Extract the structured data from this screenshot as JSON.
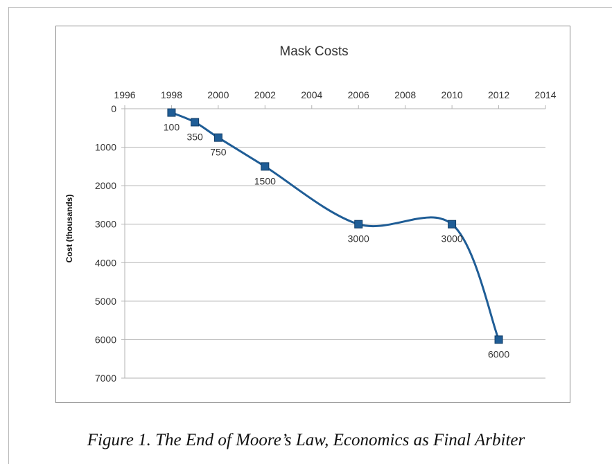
{
  "caption": "Figure 1. The End of Moore’s Law, Economics as Final Arbiter",
  "chart_data": {
    "type": "line",
    "title": "Mask Costs",
    "xlabel": "",
    "ylabel": "Cost (thousands)",
    "x_axis_position": "top",
    "y_axis_inverted": true,
    "xlim": [
      1996,
      2014
    ],
    "ylim": [
      0,
      7000
    ],
    "x_ticks": [
      1996,
      1998,
      2000,
      2002,
      2004,
      2006,
      2008,
      2010,
      2012,
      2014
    ],
    "y_ticks": [
      0,
      1000,
      2000,
      3000,
      4000,
      5000,
      6000,
      7000
    ],
    "grid": "horizontal",
    "smooth": true,
    "marker": "square",
    "color": "#1f5d96",
    "series": [
      {
        "x": [
          1998,
          1999,
          2000,
          2002,
          2006,
          2010,
          2012
        ],
        "values": [
          100,
          350,
          750,
          1500,
          3000,
          3000,
          6000
        ],
        "labels": [
          "100",
          "350",
          "750",
          "1500",
          "3000",
          "3000",
          "6000"
        ]
      }
    ]
  }
}
